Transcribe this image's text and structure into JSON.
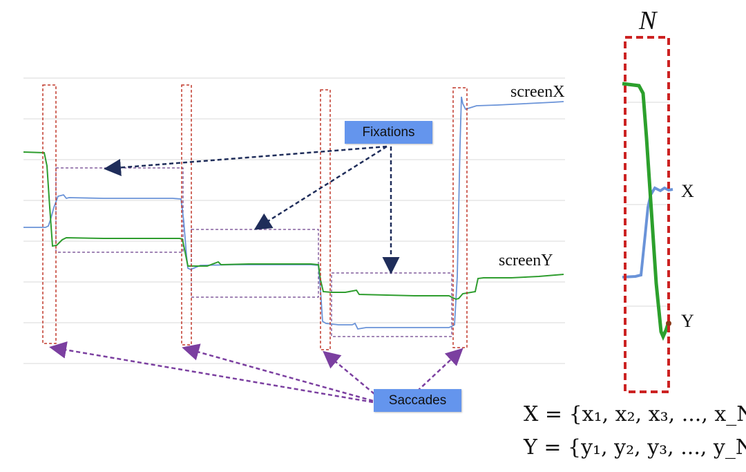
{
  "labels": {
    "screenX": "screenX",
    "screenY": "screenY",
    "fixations": "Fixations",
    "saccades": "Saccades",
    "n": "N",
    "x": "X",
    "y": "Y"
  },
  "formulas": {
    "x_set": "X = {x₁, x₂, x₃, ..., x_N}",
    "y_set": "Y = {y₁, y₂, y₃, ..., y_N}"
  },
  "colors": {
    "screen_x_line": "#6a93d8",
    "screen_y_line": "#2e9d2e",
    "saccade_box": "#c0392b",
    "fixation_box": "#6a3d8a",
    "fixation_arrow": "#1f2d5a",
    "saccade_arrow": "#7b3fa0",
    "badge": "#6495ED"
  }
}
